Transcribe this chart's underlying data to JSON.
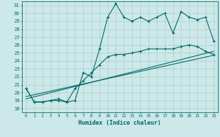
{
  "title": "",
  "xlabel": "Humidex (Indice chaleur)",
  "ylabel": "",
  "bg_color": "#cce8e8",
  "line_color": "#006666",
  "grid_color": "#aacccc",
  "xlim": [
    -0.5,
    23.5
  ],
  "ylim": [
    17.5,
    31.5
  ],
  "yticks": [
    18,
    19,
    20,
    21,
    22,
    23,
    24,
    25,
    26,
    27,
    28,
    29,
    30,
    31
  ],
  "xticks": [
    0,
    1,
    2,
    3,
    4,
    5,
    6,
    7,
    8,
    9,
    10,
    11,
    12,
    13,
    14,
    15,
    16,
    17,
    18,
    19,
    20,
    21,
    22,
    23
  ],
  "main_x": [
    0,
    1,
    2,
    3,
    4,
    5,
    6,
    7,
    8,
    9,
    10,
    11,
    12,
    13,
    14,
    15,
    16,
    17,
    18,
    19,
    20,
    21,
    22,
    23
  ],
  "main_y": [
    20.5,
    18.8,
    18.8,
    19.0,
    19.0,
    18.8,
    19.0,
    22.5,
    22.0,
    25.5,
    29.5,
    31.2,
    29.5,
    29.0,
    29.5,
    29.0,
    29.5,
    30.0,
    27.5,
    30.2,
    29.5,
    29.2,
    29.5,
    26.5
  ],
  "line2_x": [
    0,
    23
  ],
  "line2_y": [
    19.2,
    25.2
  ],
  "line3_x": [
    0,
    23
  ],
  "line3_y": [
    19.5,
    24.7
  ],
  "smooth_x": [
    0,
    1,
    2,
    3,
    4,
    5,
    6,
    7,
    8,
    9,
    10,
    11,
    12,
    13,
    14,
    15,
    16,
    17,
    18,
    19,
    20,
    21,
    22,
    23
  ],
  "smooth_y": [
    20.5,
    18.8,
    18.8,
    19.0,
    19.2,
    18.8,
    20.5,
    21.5,
    22.5,
    23.5,
    24.5,
    24.8,
    24.8,
    25.0,
    25.2,
    25.5,
    25.5,
    25.5,
    25.5,
    25.8,
    26.0,
    25.8,
    25.2,
    24.8
  ]
}
